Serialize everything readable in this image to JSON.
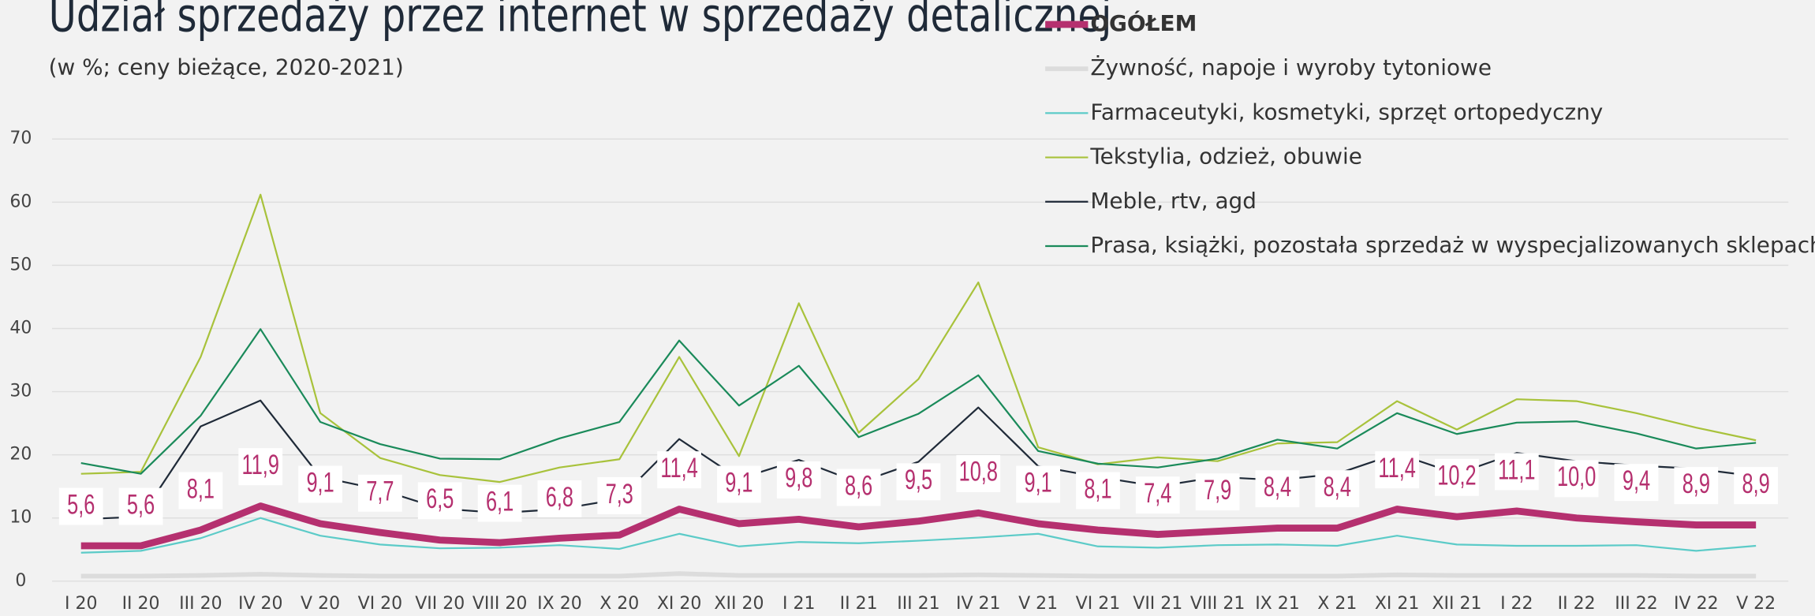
{
  "chart_data": {
    "type": "line",
    "title": "Udział sprzedaży przez internet w sprzedaży detalicznej",
    "subtitle": "(w %; ceny bieżące, 2020-2021)",
    "categories": [
      "I 20",
      "II 20",
      "III 20",
      "IV 20",
      "V 20",
      "VI 20",
      "VII 20",
      "VIII 20",
      "IX 20",
      "X 20",
      "XI 20",
      "XII 20",
      "I 21",
      "II 21",
      "III 21",
      "IV 21",
      "V 21",
      "VI 21",
      "VII 21",
      "VIII 21",
      "IX 21",
      "X 21",
      "XI 21",
      "XII 21",
      "I 22",
      "II 22",
      "III 22",
      "IV 22",
      "V 22"
    ],
    "ylim": [
      0,
      70
    ],
    "yticks": [
      0,
      10,
      20,
      30,
      40,
      50,
      60,
      70
    ],
    "grid": true,
    "series": [
      {
        "name": "OGÓŁEM",
        "color": "#b5306f",
        "values": [
          5.6,
          5.6,
          8.1,
          11.9,
          9.1,
          7.7,
          6.5,
          6.1,
          6.8,
          7.3,
          11.4,
          9.1,
          9.8,
          8.6,
          9.5,
          10.8,
          9.1,
          8.1,
          7.4,
          7.9,
          8.4,
          8.4,
          11.4,
          10.2,
          11.1,
          10.0,
          9.4,
          8.9,
          8.9
        ],
        "value_labels": [
          "5,6",
          "5,6",
          "8,1",
          "11,9",
          "9,1",
          "7,7",
          "6,5",
          "6,1",
          "6,8",
          "7,3",
          "11,4",
          "9,1",
          "9,8",
          "8,6",
          "9,5",
          "10,8",
          "9,1",
          "8,1",
          "7,4",
          "7,9",
          "8,4",
          "8,4",
          "11,4",
          "10,2",
          "11,1",
          "10,0",
          "9,4",
          "8,9",
          "8,9"
        ]
      },
      {
        "name": "Żywność, napoje i wyroby tytoniowe",
        "color": "#dcdcdc",
        "values": [
          0.8,
          0.8,
          0.9,
          1.1,
          0.9,
          0.8,
          0.8,
          0.8,
          0.8,
          0.8,
          1.2,
          0.9,
          0.9,
          0.9,
          0.9,
          1.0,
          0.9,
          0.8,
          0.8,
          0.8,
          0.8,
          0.8,
          1.0,
          0.9,
          0.9,
          0.9,
          0.9,
          0.8,
          0.8
        ]
      },
      {
        "name": "Farmaceutyki, kosmetyki, sprzęt ortopedyczny",
        "color": "#5ccbc8",
        "values": [
          4.5,
          4.8,
          6.8,
          10.0,
          7.2,
          5.8,
          5.2,
          5.3,
          5.7,
          5.1,
          7.5,
          5.5,
          6.2,
          6.0,
          6.4,
          6.9,
          7.5,
          5.5,
          5.3,
          5.7,
          5.8,
          5.6,
          7.2,
          5.8,
          5.6,
          5.6,
          5.7,
          4.8,
          5.6
        ]
      },
      {
        "name": "Tekstylia, odzież, obuwie",
        "color": "#a8c23b",
        "values": [
          17.0,
          17.3,
          35.5,
          61.2,
          26.6,
          19.5,
          16.8,
          15.7,
          18.0,
          19.3,
          35.5,
          19.8,
          44.0,
          23.5,
          32.0,
          47.3,
          21.2,
          18.5,
          19.6,
          19.0,
          21.8,
          22.0,
          28.5,
          24.0,
          28.8,
          28.5,
          26.6,
          24.3,
          22.3
        ]
      },
      {
        "name": "Meble, rtv, agd",
        "color": "#1f2a38",
        "values": [
          9.8,
          10.2,
          24.5,
          28.6,
          16.5,
          14.5,
          11.5,
          10.8,
          11.4,
          13.0,
          22.5,
          16.2,
          19.2,
          15.6,
          18.9,
          27.5,
          18.2,
          16.5,
          15.0,
          16.5,
          16.0,
          17.0,
          20.2,
          17.0,
          20.3,
          19.0,
          18.3,
          17.8,
          16.6
        ]
      },
      {
        "name": "Prasa, książki, pozostała sprzedaż w wyspecjalizowanych sklepach",
        "color": "#1a8a5a",
        "values": [
          18.7,
          17.0,
          26.2,
          39.9,
          25.2,
          21.7,
          19.4,
          19.3,
          22.6,
          25.2,
          38.1,
          27.8,
          34.1,
          22.8,
          26.5,
          32.6,
          20.6,
          18.6,
          18.0,
          19.4,
          22.4,
          21.0,
          26.6,
          23.3,
          25.1,
          25.3,
          23.4,
          21.0,
          21.9
        ]
      }
    ]
  }
}
